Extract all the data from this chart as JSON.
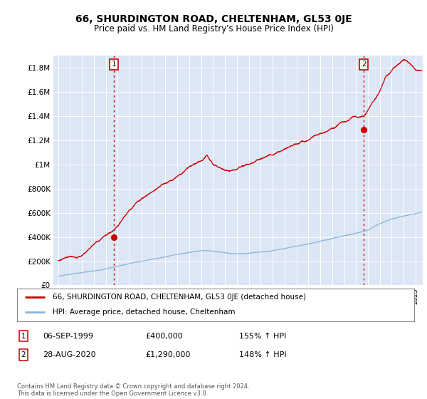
{
  "title": "66, SHURDINGTON ROAD, CHELTENHAM, GL53 0JE",
  "subtitle": "Price paid vs. HM Land Registry's House Price Index (HPI)",
  "background_color": "#ffffff",
  "plot_bg_color": "#dce6f5",
  "grid_color": "#ffffff",
  "ylim": [
    0,
    1900000
  ],
  "yticks": [
    0,
    200000,
    400000,
    600000,
    800000,
    1000000,
    1200000,
    1400000,
    1600000,
    1800000
  ],
  "ytick_labels": [
    "£0",
    "£200K",
    "£400K",
    "£600K",
    "£800K",
    "£1M",
    "£1.2M",
    "£1.4M",
    "£1.6M",
    "£1.8M"
  ],
  "xlim_start": 1994.6,
  "xlim_end": 2025.6,
  "hpi_color": "#8ab4d8",
  "price_color": "#cc0000",
  "marker1_x": 1999.67,
  "marker1_y": 400000,
  "marker2_x": 2020.66,
  "marker2_y": 1290000,
  "legend_price_label": "66, SHURDINGTON ROAD, CHELTENHAM, GL53 0JE (detached house)",
  "legend_hpi_label": "HPI: Average price, detached house, Cheltenham",
  "annotation1": [
    "1",
    "06-SEP-1999",
    "£400,000",
    "155% ↑ HPI"
  ],
  "annotation2": [
    "2",
    "28-AUG-2020",
    "£1,290,000",
    "148% ↑ HPI"
  ],
  "footer": "Contains HM Land Registry data © Crown copyright and database right 2024.\nThis data is licensed under the Open Government Licence v3.0.",
  "vline_color": "#cc0000",
  "marker_box_color": "#cc0000"
}
